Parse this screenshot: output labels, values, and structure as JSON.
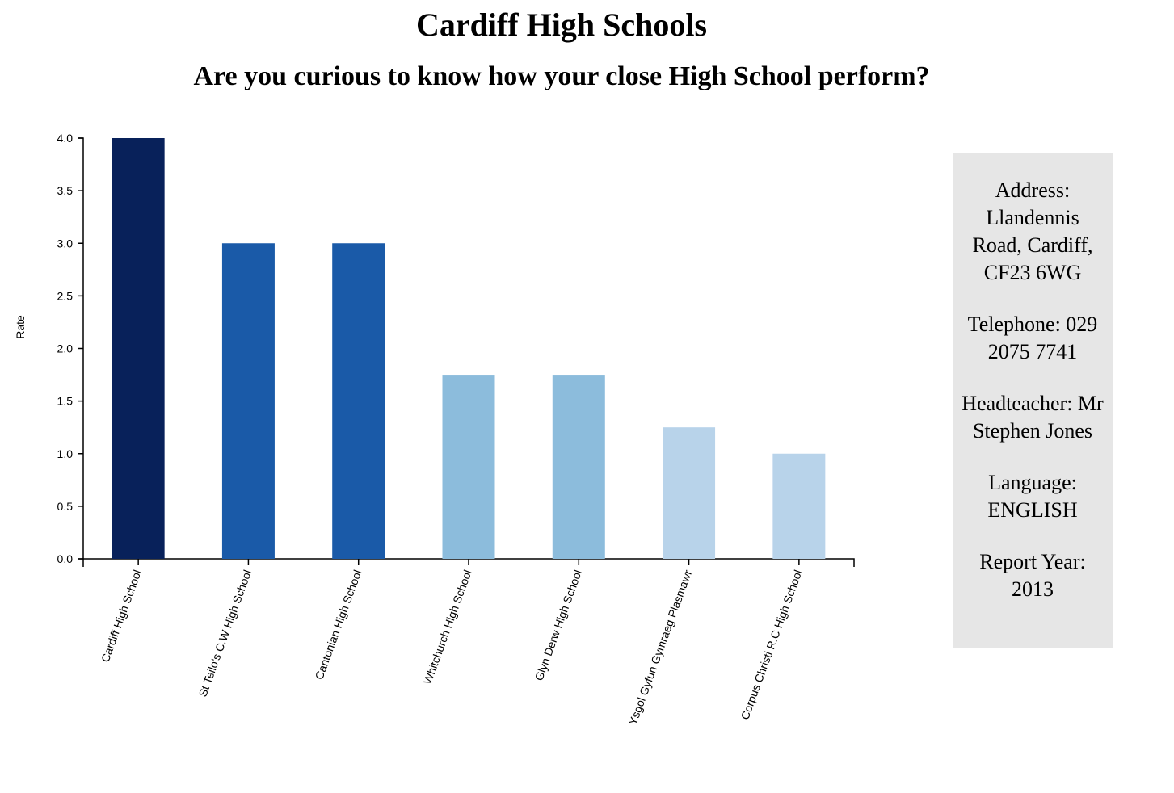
{
  "page": {
    "title": "Cardiff High Schools",
    "subtitle": "Are you curious to know how your close High School perform?"
  },
  "chart_data": {
    "type": "bar",
    "categories": [
      "Cardiff High School",
      "St Teilo's C.W High School",
      "Cantonian High School",
      "Whitchurch High School",
      "Glyn Derw High School",
      "Ysgol Gyfun Gymraeg Plasmawr",
      "Corpus Christi R.C High School"
    ],
    "values": [
      4.0,
      3.0,
      3.0,
      1.75,
      1.75,
      1.25,
      1.0
    ],
    "colors": [
      "#08215a",
      "#1a5aa8",
      "#1a5aa8",
      "#8cbcdc",
      "#8cbcdc",
      "#b8d3ea",
      "#b8d3ea"
    ],
    "ylabel": "Rate",
    "xlabel": "",
    "ylim": [
      0,
      4.0
    ],
    "yticks": [
      "0.0",
      "0.5",
      "1.0",
      "1.5",
      "2.0",
      "2.5",
      "3.0",
      "3.5",
      "4.0"
    ],
    "grid": false,
    "legend": "none"
  },
  "info": {
    "address": "Address: Llandennis Road, Cardiff, CF23 6WG",
    "telephone": "Telephone: 029 2075 7741",
    "headteacher": "Headteacher: Mr Stephen Jones",
    "language": "Language: ENGLISH",
    "report_year": "Report Year: 2013"
  }
}
